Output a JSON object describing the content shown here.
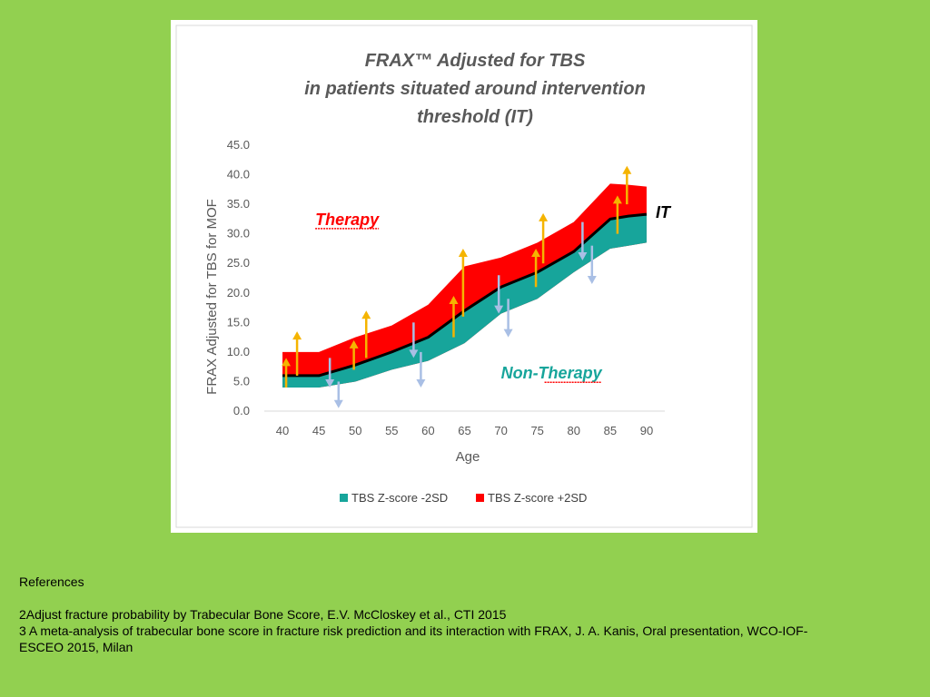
{
  "chart_data": {
    "type": "area",
    "title_lines": [
      "FRAX™ Adjusted for TBS",
      "in patients situated around intervention",
      "threshold (IT)"
    ],
    "xlabel": "Age",
    "ylabel": "FRAX Adjusted for TBS for MOF",
    "x": [
      40,
      45,
      50,
      55,
      60,
      65,
      70,
      75,
      80,
      85,
      90
    ],
    "x_ticks": [
      "40",
      "45",
      "50",
      "55",
      "60",
      "65",
      "70",
      "75",
      "80",
      "85",
      "90"
    ],
    "y_ticks": [
      "0.0",
      "5.0",
      "10.0",
      "15.0",
      "20.0",
      "25.0",
      "30.0",
      "35.0",
      "40.0",
      "45.0"
    ],
    "xlim": [
      37.5,
      92.5
    ],
    "ylim": [
      0,
      45
    ],
    "series": [
      {
        "name": "TBS Z-score -2SD",
        "color": "#17a59b",
        "x": [
          40,
          45,
          50,
          55,
          60,
          65,
          70,
          75,
          80,
          85,
          87.5,
          90
        ],
        "values": [
          4.0,
          4.0,
          5.0,
          7.0,
          8.5,
          11.5,
          16.5,
          19.0,
          23.5,
          27.5,
          28.0,
          28.5
        ]
      },
      {
        "name": "TBS Z-score +2SD",
        "color": "#ff0000",
        "x": [
          40,
          45,
          50,
          55,
          60,
          65,
          70,
          75,
          80,
          85,
          87.5,
          90
        ],
        "values": [
          10.0,
          10.0,
          12.5,
          14.5,
          18.0,
          24.5,
          26.0,
          28.5,
          32.0,
          38.5,
          38.3,
          38.0
        ]
      }
    ],
    "it_line": {
      "label": "IT",
      "x": [
        40,
        45,
        50,
        55,
        60,
        65,
        70,
        75,
        80,
        85,
        87.5,
        90
      ],
      "values": [
        6.0,
        6.0,
        7.8,
        10.0,
        12.5,
        17.0,
        21.0,
        23.5,
        27.0,
        32.5,
        33.0,
        33.3
      ]
    },
    "annotations": [
      {
        "text": "Therapy",
        "color": "#ff0000"
      },
      {
        "text": "Non-Therapy",
        "color": "#17a59b"
      }
    ],
    "arrows_up": [
      {
        "x": 40.5,
        "from": 4.0,
        "to": 9.0
      },
      {
        "x": 42,
        "from": 6.0,
        "to": 13.5
      },
      {
        "x": 49.8,
        "from": 7.0,
        "to": 12.0
      },
      {
        "x": 51.5,
        "from": 9.0,
        "to": 17.0
      },
      {
        "x": 63.5,
        "from": 12.5,
        "to": 19.5
      },
      {
        "x": 64.8,
        "from": 16.0,
        "to": 27.5
      },
      {
        "x": 74.8,
        "from": 21.0,
        "to": 27.5
      },
      {
        "x": 75.8,
        "from": 25.0,
        "to": 33.5
      },
      {
        "x": 86,
        "from": 30.0,
        "to": 36.5
      },
      {
        "x": 87.3,
        "from": 35.0,
        "to": 41.5
      }
    ],
    "arrows_down": [
      {
        "x": 46.5,
        "from": 9.0,
        "to": 4.0
      },
      {
        "x": 47.7,
        "from": 5.0,
        "to": 0.5
      },
      {
        "x": 58,
        "from": 15.0,
        "to": 9.0
      },
      {
        "x": 59,
        "from": 10.0,
        "to": 4.0
      },
      {
        "x": 69.7,
        "from": 23.0,
        "to": 16.5
      },
      {
        "x": 71,
        "from": 19.0,
        "to": 12.5
      },
      {
        "x": 81.2,
        "from": 32.0,
        "to": 25.5
      },
      {
        "x": 82.5,
        "from": 28.0,
        "to": 21.5
      }
    ],
    "legend_position": "bottom"
  },
  "references": {
    "heading": "References",
    "items": [
      "2Adjust fracture probability by Trabecular Bone Score, E.V. McCloskey et al., CTI 2015",
      "3 A meta-analysis of trabecular bone score in fracture risk prediction and its interaction with FRAX, J. A. Kanis, Oral presentation, WCO-IOF-",
      "ESCEO 2015, Milan"
    ]
  }
}
